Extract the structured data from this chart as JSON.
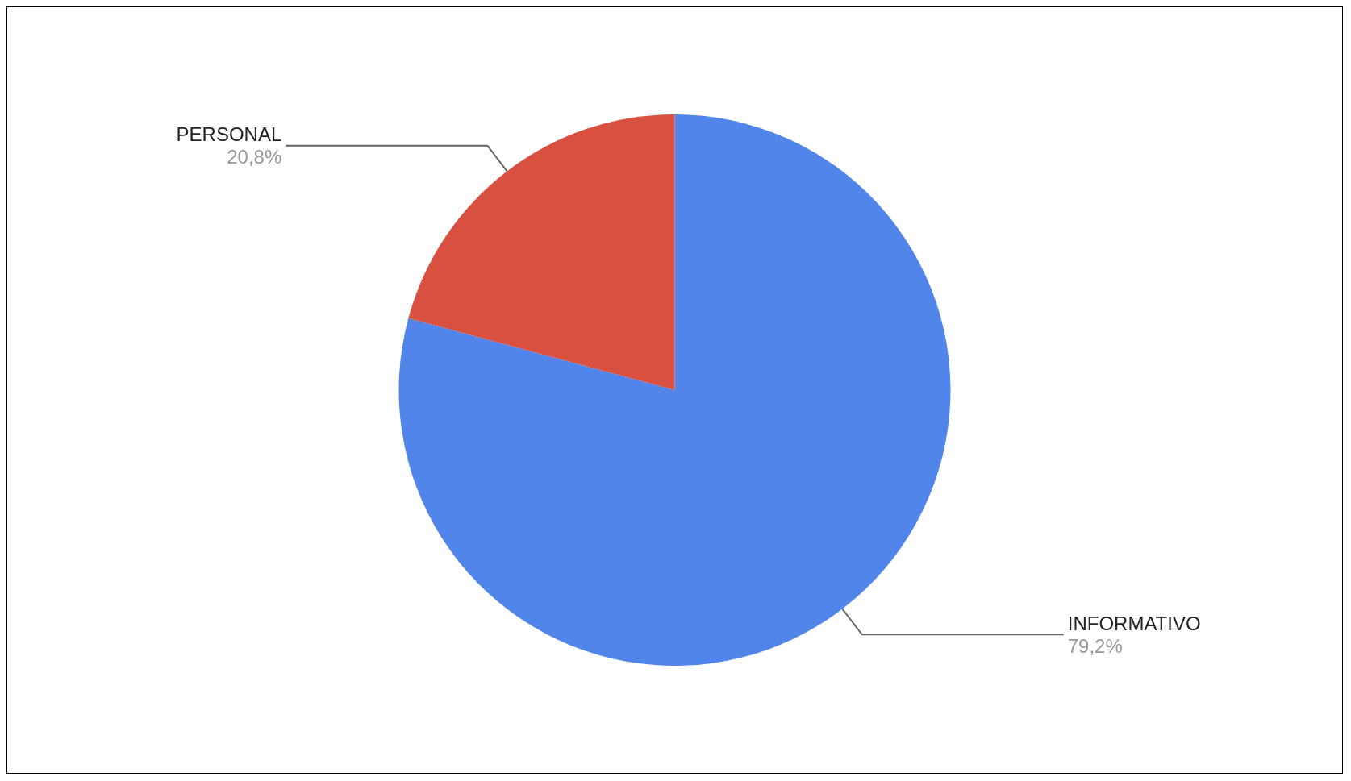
{
  "chart_data": {
    "type": "pie",
    "categories": [
      "INFORMATIVO",
      "PERSONAL"
    ],
    "values": [
      79.2,
      20.8
    ],
    "colors": [
      "#5185ea",
      "#d85140"
    ],
    "value_labels": [
      "79,2%",
      "20,8%"
    ],
    "legend": false
  }
}
